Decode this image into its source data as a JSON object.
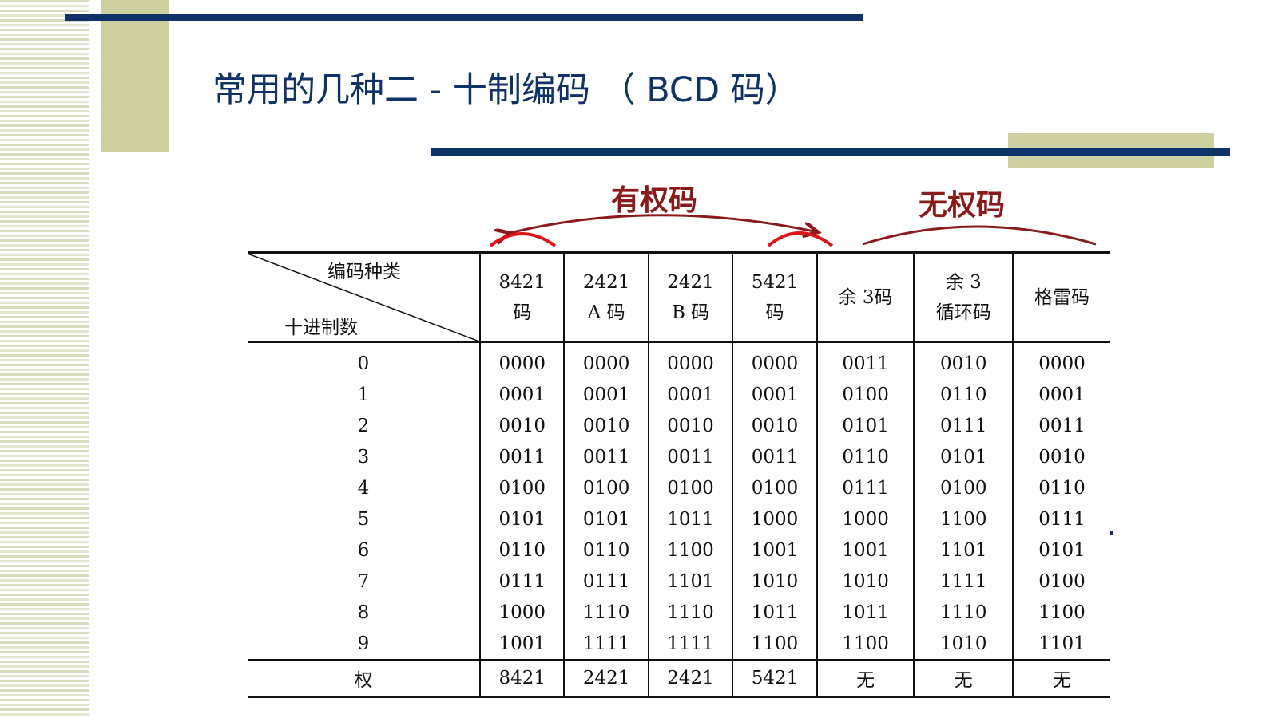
{
  "title": "常用的几种二 - 十制编码 （ BCD 码）",
  "groups": {
    "weighted": "有权码",
    "unweighted": "无权码"
  },
  "colors": {
    "title": "#0f3269",
    "bars": "#0f3269",
    "accent_olive": "#cfd0a2",
    "group_label": "#8b1a1a",
    "circle_marks": "#e0121a"
  },
  "table": {
    "corner_top": "编码种类",
    "corner_bottom": "十进制数",
    "headers": [
      [
        "8421",
        "码"
      ],
      [
        "2421",
        "A 码"
      ],
      [
        "2421",
        "B 码"
      ],
      [
        "5421",
        "码"
      ],
      [
        "余 3码"
      ],
      [
        "余 3",
        "循环码"
      ],
      [
        "格雷码"
      ]
    ],
    "rows": [
      {
        "digit": "0",
        "codes": [
          "0000",
          "0000",
          "0000",
          "0000",
          "0011",
          "0010",
          "0000"
        ]
      },
      {
        "digit": "1",
        "codes": [
          "0001",
          "0001",
          "0001",
          "0001",
          "0100",
          "0110",
          "0001"
        ]
      },
      {
        "digit": "2",
        "codes": [
          "0010",
          "0010",
          "0010",
          "0010",
          "0101",
          "0111",
          "0011"
        ]
      },
      {
        "digit": "3",
        "codes": [
          "0011",
          "0011",
          "0011",
          "0011",
          "0110",
          "0101",
          "0010"
        ]
      },
      {
        "digit": "4",
        "codes": [
          "0100",
          "0100",
          "0100",
          "0100",
          "0111",
          "0100",
          "0110"
        ]
      },
      {
        "digit": "5",
        "codes": [
          "0101",
          "0101",
          "1011",
          "1000",
          "1000",
          "1100",
          "0111"
        ]
      },
      {
        "digit": "6",
        "codes": [
          "0110",
          "0110",
          "1100",
          "1001",
          "1001",
          "1101",
          "0101"
        ]
      },
      {
        "digit": "7",
        "codes": [
          "0111",
          "0111",
          "1101",
          "1010",
          "1010",
          "1111",
          "0100"
        ]
      },
      {
        "digit": "8",
        "codes": [
          "1000",
          "1110",
          "1110",
          "1011",
          "1011",
          "1110",
          "1100"
        ]
      },
      {
        "digit": "9",
        "codes": [
          "1001",
          "1111",
          "1111",
          "1100",
          "1100",
          "1010",
          "1101"
        ]
      }
    ],
    "weight_label": "权",
    "weights": [
      "8421",
      "2421",
      "2421",
      "5421",
      "无",
      "无",
      "无"
    ]
  }
}
